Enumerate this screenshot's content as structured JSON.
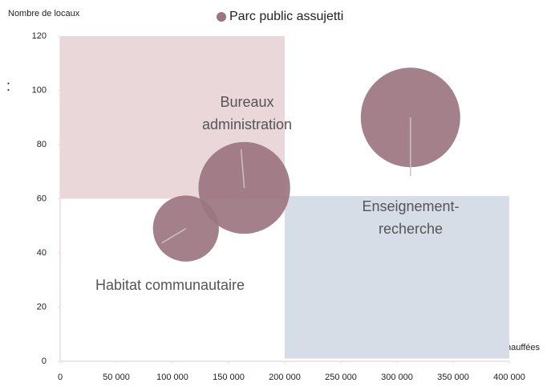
{
  "chart_data": {
    "type": "bubble",
    "y_label": "Nombre de locaux",
    "x_label": "Surfaces chauffées",
    "stray_text": ":",
    "xlim": [
      0,
      400000
    ],
    "ylim": [
      0,
      120
    ],
    "xticks": [
      0,
      {
        "value": 50000,
        "label": "50 000"
      },
      {
        "value": 100000,
        "label": "100 000"
      },
      {
        "value": 150000,
        "label": "150 000"
      },
      {
        "value": 200000,
        "label": "200 000"
      },
      {
        "value": 250000,
        "label": "250 000"
      },
      {
        "value": 300000,
        "label": "300 000"
      },
      {
        "value": 350000,
        "label": "350 000"
      },
      {
        "value": 400000,
        "label": "400 000"
      }
    ],
    "yticks": [
      0,
      20,
      40,
      60,
      80,
      100,
      120
    ],
    "regions": [
      {
        "xlim": [
          0,
          200000
        ],
        "ylim": [
          60,
          120
        ],
        "color": "#e9d7da"
      },
      {
        "xlim": [
          200000,
          400000
        ],
        "ylim": [
          1,
          61
        ],
        "color": "#d6dde7"
      }
    ],
    "annotations": [
      {
        "lines": [
          "Habitat communautaire"
        ]
      },
      {
        "lines": [
          "Bureaux",
          "administration"
        ]
      },
      {
        "lines": [
          "Enseignement-",
          "recherche"
        ]
      }
    ],
    "series": [
      {
        "name": "Parc public assujetti",
        "color": "#9b7580",
        "x": [
          112000,
          164000,
          312000
        ],
        "values": [
          49,
          64,
          90
        ],
        "sizes": [
          44,
          85,
          100
        ]
      }
    ]
  }
}
